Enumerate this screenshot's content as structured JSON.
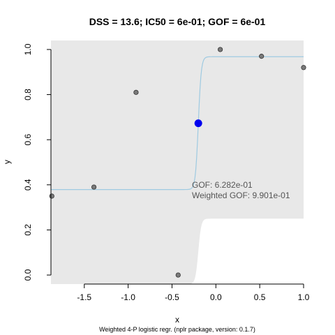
{
  "chart_data": {
    "type": "scatter",
    "title": "DSS = 13.6; IC50 = 6e-01; GOF = 6e-01",
    "xlabel": "x",
    "ylabel": "y",
    "footer": "Weighted 4-P logistic regr. (nplr package, version: 0.1.7)",
    "xlim": [
      -1.88,
      1.0
    ],
    "ylim": [
      -0.04,
      1.04
    ],
    "x_ticks": [
      -1.5,
      -1.0,
      -0.5,
      0.0,
      0.5,
      1.0
    ],
    "x_tick_labels": [
      "-1.5",
      "-1.0",
      "-0.5",
      "0.0",
      "0.5",
      "1.0"
    ],
    "y_ticks": [
      0.0,
      0.2,
      0.4,
      0.6,
      0.8,
      1.0
    ],
    "y_tick_labels": [
      "0.0",
      "0.2",
      "0.4",
      "0.6",
      "0.8",
      "1.0"
    ],
    "points": [
      {
        "x": -1.87,
        "y": 0.35
      },
      {
        "x": -1.39,
        "y": 0.39
      },
      {
        "x": -0.91,
        "y": 0.81
      },
      {
        "x": -0.43,
        "y": 0.0
      },
      {
        "x": 0.05,
        "y": 1.0
      },
      {
        "x": 0.52,
        "y": 0.97
      },
      {
        "x": 1.0,
        "y": 0.92
      }
    ],
    "fit": {
      "bottom": 0.379,
      "top": 0.968,
      "inflection_x": -0.2,
      "slope": 60
    },
    "confidence_band": {
      "lower_bottom": -0.04,
      "lower_top": 0.25,
      "upper_bottom": 1.04,
      "upper_top": 1.04
    },
    "ic50_point": {
      "x": -0.2,
      "y": 0.673
    },
    "annotations": [
      "GOF: 6.282e-01",
      "Weighted GOF: 9.901e-01"
    ],
    "colors": {
      "band": "#e8e8e8",
      "curve": "#9ecae1",
      "points": "#7a7a7a",
      "ic50": "#0000ee",
      "annotation": "#555555"
    }
  }
}
